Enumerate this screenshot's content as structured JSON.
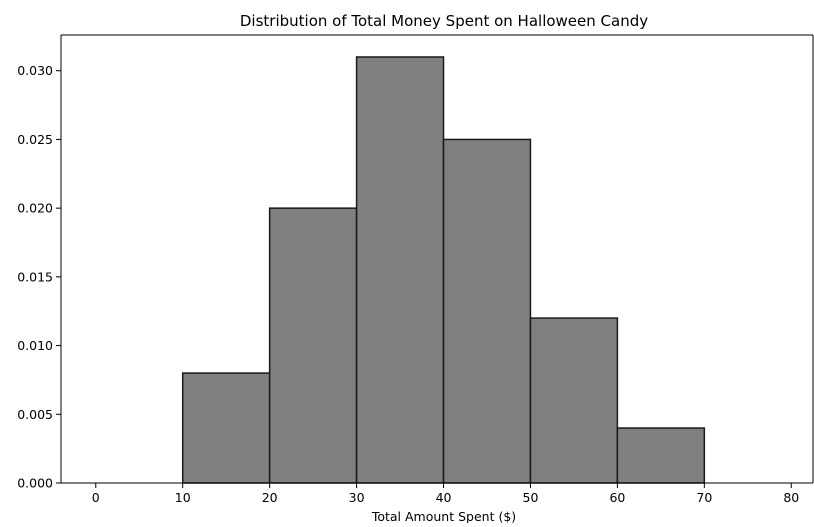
{
  "chart_data": {
    "type": "bar",
    "title": "Distribution of Total Money Spent on Halloween Candy",
    "xlabel": "Total Amount Spent ($)",
    "ylabel": "",
    "bin_edges": [
      10,
      20,
      30,
      40,
      50,
      60,
      70
    ],
    "values": [
      0.008,
      0.02,
      0.031,
      0.025,
      0.012,
      0.004
    ],
    "xlim": [
      -4,
      82.5
    ],
    "ylim": [
      0,
      0.0326
    ],
    "x_ticks": [
      0,
      10,
      20,
      30,
      40,
      50,
      60,
      70,
      80
    ],
    "y_ticks": [
      0.0,
      0.005,
      0.01,
      0.015,
      0.02,
      0.025,
      0.03
    ],
    "x_tick_labels": [
      "0",
      "10",
      "20",
      "30",
      "40",
      "50",
      "60",
      "70",
      "80"
    ],
    "y_tick_labels": [
      "0.000",
      "0.005",
      "0.010",
      "0.015",
      "0.020",
      "0.025",
      "0.030"
    ],
    "grid": false,
    "legend": "none",
    "colors": {
      "bar_fill": "#808080",
      "bar_edge": "#1a1a1a",
      "axis": "#000000"
    }
  }
}
